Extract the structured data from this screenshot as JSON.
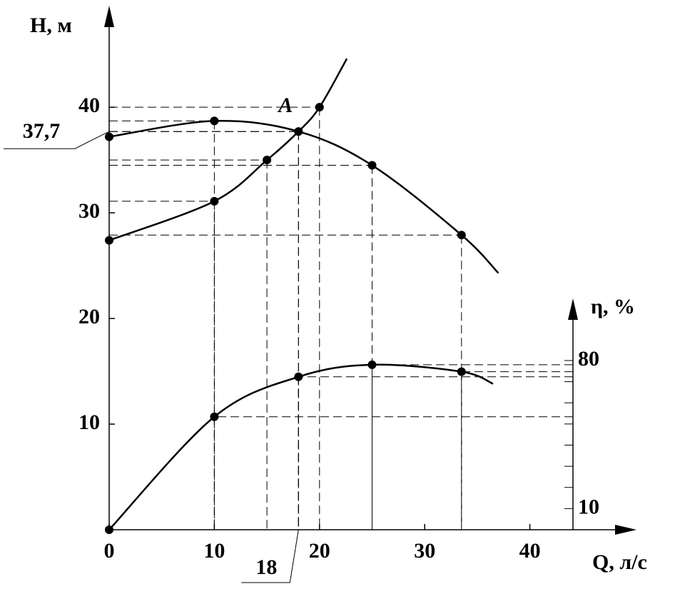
{
  "chart_data": {
    "type": "line",
    "x_label": "Q, л/с",
    "y_label": "H, м",
    "y2_label": "η, %",
    "xlim": [
      0,
      50
    ],
    "xticks": [
      0,
      10,
      20,
      30,
      40
    ],
    "ylim": [
      0,
      49
    ],
    "yticks": [
      10,
      20,
      30,
      40
    ],
    "y2lim": [
      0,
      108
    ],
    "y2ticks": [
      10,
      80
    ],
    "y2minor_ticks": [
      20,
      30,
      40,
      50,
      60,
      70
    ],
    "series": [
      {
        "color": "#000000",
        "x": [
          0,
          10,
          18,
          25,
          33.5,
          37
        ],
        "values": [
          37.2,
          38.7,
          37.7,
          34.5,
          27.9,
          24.3
        ],
        "markers": [
          true,
          true,
          true,
          true,
          true,
          false
        ]
      },
      {
        "color": "#000000",
        "x": [
          0,
          10,
          15,
          18,
          20,
          22.6
        ],
        "values": [
          27.4,
          31.1,
          35,
          37.7,
          40,
          44.6
        ],
        "markers": [
          true,
          true,
          true,
          true,
          true,
          false
        ]
      },
      {
        "color": "#000000",
        "axis": "y2",
        "x": [
          0,
          10,
          18,
          25,
          33.5,
          36.5
        ],
        "values": [
          0,
          53.4,
          72.3,
          78,
          74.7,
          69
        ],
        "markers": [
          true,
          true,
          true,
          true,
          true,
          false
        ]
      }
    ],
    "annotations": [
      {
        "text": "A",
        "x": 18,
        "y": 37.7
      },
      {
        "text": "37,7",
        "y": 37.7
      },
      {
        "text": "18",
        "x": 18
      }
    ]
  }
}
